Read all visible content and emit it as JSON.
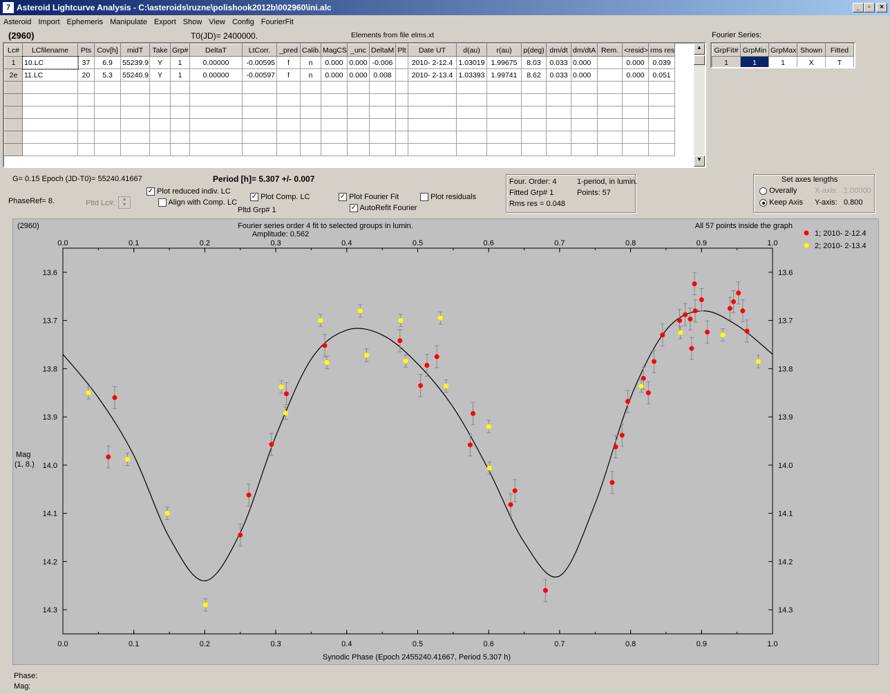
{
  "window": {
    "title": "Asteroid Lightcurve Analysis - C:\\asteroids\\ruzne\\polishook2012b\\002960\\ini.alc",
    "icon_text": "7"
  },
  "menu": [
    "Asteroid",
    "Import",
    "Ephemeris",
    "Manipulate",
    "Export",
    "Show",
    "View",
    "Config",
    "FourierFit"
  ],
  "header": {
    "asteroid_id": "(2960)",
    "t0": "T0(JD)= 2400000.",
    "elements": "Elements from file elms.xt",
    "fourier_series_label": "Fourier Series:"
  },
  "lc_table": {
    "columns": [
      "Lc#",
      "LCfilename",
      "Pts",
      "Cov[h]",
      "midT",
      "Take",
      "Grp#",
      "DeltaT",
      "LtCorr.",
      "_pred",
      "Calib.",
      "MagCS",
      "_unc",
      "DeltaM",
      "Plt",
      "Date UT",
      "d(au)",
      "r(au)",
      "p(deg)",
      "dm/dt",
      "dm/dtA",
      "Rem.",
      "<resid>",
      "rms res"
    ],
    "rows": [
      [
        "1",
        "10.LC",
        "37",
        "6.9",
        "55239.9",
        "Y",
        "1",
        "0.00000",
        "-0.00595",
        "f",
        "n",
        "0.000",
        "0.000",
        "-0.006",
        "",
        "2010- 2-12.4",
        "1.03019",
        "1.99675",
        "8.03",
        "0.033",
        "0.000",
        "",
        "0.000",
        "0.039"
      ],
      [
        "2e",
        "11.LC",
        "20",
        "5.3",
        "55240.9",
        "Y",
        "1",
        "0.00000",
        "-0.00597",
        "f",
        "n",
        "0.000",
        "0.000",
        "0.008",
        "",
        "2010- 2-13.4",
        "1.03393",
        "1.99741",
        "8.62",
        "0.033",
        "0.000",
        "",
        "0.000",
        "0.051"
      ]
    ]
  },
  "fourier_table": {
    "columns": [
      "GrpFit#",
      "GrpMin",
      "GrpMax",
      "Shown",
      "Fitted"
    ],
    "row": [
      "1",
      "1",
      "1",
      "X",
      "T"
    ]
  },
  "controls": {
    "g_epoch": "G= 0.15   Epoch (JD-T0)= 55240.41667",
    "period": "Period [h]= 5.307 +/- 0.007",
    "phase_ref": "PhaseRef= 8.",
    "pltd_lc": "Pltd Lc#:",
    "pltd_grp": "Pltd Grp#  1",
    "plot_reduced": "Plot reduced indiv. LC",
    "align_comp": "Align with Comp. LC",
    "plot_comp": "Plot Comp. LC",
    "plot_fourier": "Plot Fourier Fit",
    "autorefit": "AutoRefit Fourier",
    "plot_residuals": "Plot residuals"
  },
  "fit_info": {
    "order": "Four. Order:  4",
    "mode": "1-period, in lumin.",
    "fitted_grp": "Fitted Grp# 1",
    "points": "Points: 57",
    "rms": "Rms res     = 0.048"
  },
  "axes_box": {
    "title": "Set axes lengths",
    "overally": "Overally",
    "keep_axis": "Keep Axis",
    "x_axis_label": "X-axis:",
    "x_axis_value": "1.00000",
    "y_axis_label": "Y-axis:",
    "y_axis_value": "0.800"
  },
  "status": {
    "phase": "Phase:",
    "mag": "Mag:"
  },
  "colors": {
    "series1": "#ff0000",
    "series2": "#ffff00",
    "plot_bg": "#c0c0c0",
    "titlebar": "#0a246a"
  },
  "chart_data": {
    "type": "scatter",
    "title": "Fourier series order 4 fit to selected groups in lumin.",
    "subtitle": "Amplitude: 0.562",
    "corner_left": "(2960)",
    "corner_right": "All 57 points inside the graph",
    "xlabel": "Synodic Phase (Epoch 2455240.41667, Period 5.307 h)",
    "ylabel": "Mag",
    "ylabel2": "(1, 8.)",
    "xlim": [
      0,
      1
    ],
    "ylim": [
      14.35,
      13.55
    ],
    "y_inverted": true,
    "xticks": [
      "0.0",
      "0.1",
      "0.2",
      "0.3",
      "0.4",
      "0.5",
      "0.6",
      "0.7",
      "0.8",
      "0.9",
      "1.0"
    ],
    "yticks": [
      "13.6",
      "13.7",
      "13.8",
      "13.9",
      "14.0",
      "14.1",
      "14.2",
      "14.3"
    ],
    "legend_position": "top-right",
    "fit_curve": {
      "x": [
        0.0,
        0.05,
        0.1,
        0.15,
        0.2,
        0.25,
        0.3,
        0.35,
        0.4,
        0.45,
        0.5,
        0.55,
        0.6,
        0.65,
        0.7,
        0.75,
        0.8,
        0.85,
        0.9,
        0.95,
        1.0
      ],
      "y": [
        13.77,
        13.86,
        13.98,
        14.15,
        14.24,
        14.14,
        13.94,
        13.78,
        13.72,
        13.73,
        13.79,
        13.88,
        14.01,
        14.16,
        14.23,
        14.08,
        13.86,
        13.72,
        13.68,
        13.71,
        13.77
      ]
    },
    "series": [
      {
        "name": "1; 2010- 2-12.4",
        "x": [
          0.064,
          0.073,
          0.25,
          0.262,
          0.294,
          0.315,
          0.369,
          0.475,
          0.504,
          0.513,
          0.527,
          0.578,
          0.574,
          0.631,
          0.637,
          0.68,
          0.774,
          0.779,
          0.788,
          0.796,
          0.818,
          0.825,
          0.833,
          0.845,
          0.869,
          0.877,
          0.884,
          0.886,
          0.89,
          0.891,
          0.9,
          0.908,
          0.94,
          0.945,
          0.952,
          0.958,
          0.964
        ],
        "y": [
          13.983,
          13.86,
          14.145,
          14.062,
          13.957,
          13.852,
          13.752,
          13.742,
          13.835,
          13.793,
          13.775,
          13.893,
          13.958,
          14.082,
          14.053,
          14.26,
          14.036,
          13.962,
          13.938,
          13.868,
          13.82,
          13.85,
          13.785,
          13.73,
          13.7,
          13.688,
          13.697,
          13.758,
          13.624,
          13.68,
          13.657,
          13.724,
          13.675,
          13.661,
          13.643,
          13.68,
          13.722
        ]
      },
      {
        "name": "2; 2010- 2-13.4",
        "x": [
          0.036,
          0.091,
          0.147,
          0.201,
          0.308,
          0.314,
          0.363,
          0.372,
          0.419,
          0.428,
          0.476,
          0.483,
          0.532,
          0.54,
          0.6,
          0.601,
          0.815,
          0.87,
          0.93,
          0.98
        ],
        "y": [
          13.85,
          13.988,
          14.1,
          14.29,
          13.838,
          13.892,
          13.7,
          13.787,
          13.68,
          13.772,
          13.7,
          13.784,
          13.695,
          13.836,
          13.92,
          14.006,
          13.836,
          13.725,
          13.73,
          13.785
        ]
      }
    ]
  }
}
